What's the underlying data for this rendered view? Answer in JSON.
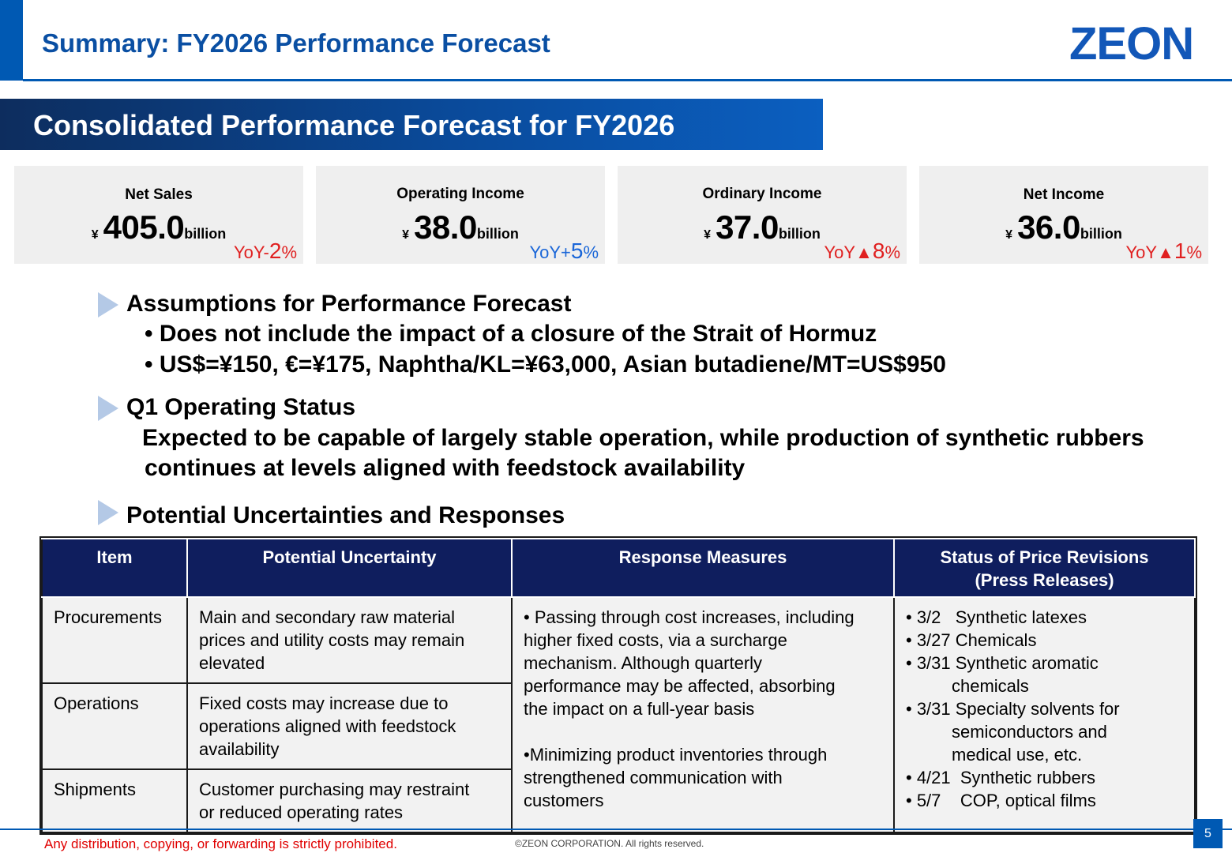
{
  "header": {
    "title": "Summary: FY2026 Performance Forecast",
    "logo": "ZEON"
  },
  "banner": {
    "title": "Consolidated Performance Forecast for FY2026"
  },
  "kpis": [
    {
      "label": "Net Sales",
      "currency": "¥",
      "value": "405.0",
      "unit": "billion",
      "yoy_prefix": "YoY-",
      "yoy_value": "2",
      "yoy_suffix": "%"
    },
    {
      "label": "Operating Income",
      "currency": "¥",
      "value": "38.0",
      "unit": "billion",
      "yoy_prefix": "YoY+",
      "yoy_value": "5",
      "yoy_suffix": "%"
    },
    {
      "label": "Ordinary Income",
      "currency": "¥",
      "value": "37.0",
      "unit": "billion",
      "yoy_prefix": "YoY▲",
      "yoy_value": "8",
      "yoy_suffix": "%"
    },
    {
      "label": "Net Income",
      "currency": "¥",
      "value": "36.0",
      "unit": "billion",
      "yoy_prefix": "YoY▲",
      "yoy_value": "1",
      "yoy_suffix": "%"
    }
  ],
  "colors": {
    "brand_blue": "#0059b3",
    "table_header": "#0f1e5e",
    "yoy_negative": "#e02020",
    "yoy_positive": "#1a66d8"
  },
  "sections": {
    "assumptions": {
      "heading": "Assumptions for Performance Forecast",
      "bullets": [
        "• Does not include the impact of a closure of the Strait of Hormuz",
        "• US$=¥150, €=¥175, Naphtha/KL=¥63,000, Asian butadiene/MT=US$950"
      ]
    },
    "q1": {
      "heading": "Q1 Operating Status",
      "lines": [
        "Expected to be capable of largely stable operation, while production of synthetic rubbers",
        "continues at levels aligned with feedstock availability"
      ]
    },
    "uncertainties": {
      "heading": "Potential Uncertainties and Responses"
    }
  },
  "table": {
    "headers": [
      "Item",
      "Potential Uncertainty",
      "Response Measures",
      "Status of Price Revisions",
      "(Press Releases)"
    ],
    "rows": [
      {
        "item": "Procurements",
        "uncertainty": [
          "Main and secondary raw material",
          "prices and utility costs may remain",
          "elevated"
        ]
      },
      {
        "item": "Operations",
        "uncertainty": [
          "Fixed costs may increase due to",
          "operations aligned with feedstock",
          "availability"
        ]
      },
      {
        "item": "Shipments",
        "uncertainty": [
          "Customer purchasing may restraint",
          "or reduced operating rates"
        ]
      }
    ],
    "response_lines": [
      "• Passing through cost increases, including",
      "higher fixed costs, via a surcharge",
      "mechanism. Although quarterly",
      "performance may be affected, absorbing",
      "the impact on a full-year basis",
      "",
      "•Minimizing product inventories through",
      "strengthened communication with",
      "customers"
    ],
    "price_revisions": [
      "• 3/2   Synthetic latexes",
      "• 3/27 Chemicals",
      "• 3/31 Synthetic aromatic",
      "chemicals",
      "• 3/31 Specialty solvents for",
      "semiconductors and",
      "medical use, etc.",
      "• 4/21  Synthetic rubbers",
      "• 5/7    COP, optical films"
    ]
  },
  "footer": {
    "warning": "Any distribution, copying, or forwarding is strictly prohibited.",
    "copyright": "©ZEON CORPORATION. All rights reserved.",
    "page": "5"
  }
}
